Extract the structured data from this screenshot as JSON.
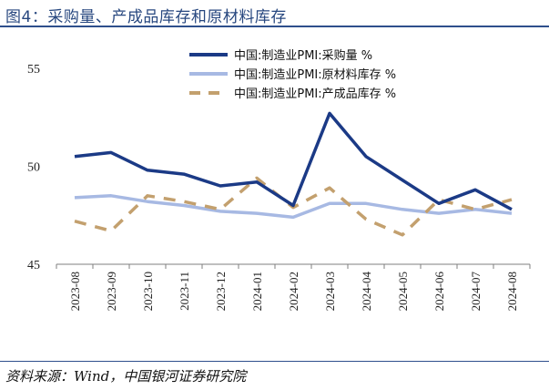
{
  "figure": {
    "title": "图4：采购量、产成品库存和原材料库存",
    "source": "资料来源：Wind，中国银河证券研究院"
  },
  "chart_data": {
    "type": "line",
    "categories": [
      "2023-08",
      "2023-09",
      "2023-10",
      "2023-11",
      "2023-12",
      "2024-01",
      "2024-02",
      "2024-03",
      "2024-04",
      "2024-05",
      "2024-06",
      "2024-07",
      "2024-08"
    ],
    "ylim": [
      45,
      55
    ],
    "yticks": [
      45,
      50,
      55
    ],
    "grid": false,
    "legend_position": "top-right",
    "series": [
      {
        "name": "中国:制造业PMI:采购量 %",
        "color": "#1b3a86",
        "style": "solid",
        "values": [
          50.5,
          50.7,
          49.8,
          49.6,
          49.0,
          49.2,
          48.0,
          52.7,
          50.5,
          49.3,
          48.1,
          48.8,
          47.8
        ]
      },
      {
        "name": "中国:制造业PMI:原材料库存 %",
        "color": "#a7b9e3",
        "style": "solid",
        "values": [
          48.4,
          48.5,
          48.2,
          48.0,
          47.7,
          47.6,
          47.4,
          48.1,
          48.1,
          47.8,
          47.6,
          47.8,
          47.6
        ]
      },
      {
        "name": "中国:制造业PMI:产成品库存 %",
        "color": "#c3a06e",
        "style": "dashed",
        "values": [
          47.2,
          46.7,
          48.5,
          48.2,
          47.8,
          49.4,
          47.9,
          48.9,
          47.3,
          46.5,
          48.3,
          47.8,
          48.3
        ]
      }
    ]
  }
}
